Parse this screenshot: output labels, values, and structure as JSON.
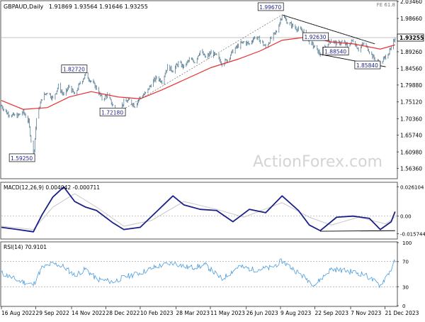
{
  "header": {
    "symbol": "GBPAUD,Daily",
    "ohlc": "1.91869 1.93564 1.91646 1.93255",
    "fib": "FE 61.8"
  },
  "watermark": "ActionForex.com",
  "colors": {
    "price": "#5b7f95",
    "ma": "#e83030",
    "macd": "#1a1f8a",
    "signal": "#c8c8c8",
    "rsi": "#4a9de0",
    "trend": "#000000"
  },
  "chart_data": [
    {
      "type": "candlestick",
      "panel": "price",
      "ylim": [
        1.5363,
        2.0346
      ],
      "y_ticks": [
        "2.03460",
        "1.98660",
        "1.93255",
        "1.89260",
        "1.84560",
        "1.79880",
        "1.75120",
        "1.70360",
        "1.65740",
        "1.60980",
        "1.56360"
      ],
      "price_points": [
        {
          "date": "2022-08-16",
          "price": 1.74
        },
        {
          "date": "2022-08-23",
          "price": 1.72
        },
        {
          "date": "2022-08-30",
          "price": 1.713
        },
        {
          "date": "2022-09-06",
          "price": 1.712
        },
        {
          "date": "2022-09-13",
          "price": 1.723
        },
        {
          "date": "2022-09-20",
          "price": 1.695
        },
        {
          "date": "2022-09-26",
          "price": 1.5925
        },
        {
          "date": "2022-09-30",
          "price": 1.705
        },
        {
          "date": "2022-10-07",
          "price": 1.762
        },
        {
          "date": "2022-10-14",
          "price": 1.78
        },
        {
          "date": "2022-10-21",
          "price": 1.76
        },
        {
          "date": "2022-10-28",
          "price": 1.795
        },
        {
          "date": "2022-11-04",
          "price": 1.77
        },
        {
          "date": "2022-11-11",
          "price": 1.795
        },
        {
          "date": "2022-11-18",
          "price": 1.77
        },
        {
          "date": "2022-11-25",
          "price": 1.805
        },
        {
          "date": "2022-12-02",
          "price": 1.8272
        },
        {
          "date": "2022-12-09",
          "price": 1.81
        },
        {
          "date": "2022-12-16",
          "price": 1.79
        },
        {
          "date": "2022-12-23",
          "price": 1.76
        },
        {
          "date": "2022-12-30",
          "price": 1.77
        },
        {
          "date": "2023-01-06",
          "price": 1.74
        },
        {
          "date": "2023-01-13",
          "price": 1.7218
        },
        {
          "date": "2023-01-20",
          "price": 1.75
        },
        {
          "date": "2023-01-27",
          "price": 1.755
        },
        {
          "date": "2023-02-03",
          "price": 1.74
        },
        {
          "date": "2023-02-10",
          "price": 1.765
        },
        {
          "date": "2023-02-17",
          "price": 1.775
        },
        {
          "date": "2023-02-24",
          "price": 1.8
        },
        {
          "date": "2023-03-03",
          "price": 1.82
        },
        {
          "date": "2023-03-10",
          "price": 1.81
        },
        {
          "date": "2023-03-17",
          "price": 1.85
        },
        {
          "date": "2023-03-24",
          "price": 1.84
        },
        {
          "date": "2023-03-31",
          "price": 1.86
        },
        {
          "date": "2023-04-07",
          "price": 1.85
        },
        {
          "date": "2023-04-14",
          "price": 1.87
        },
        {
          "date": "2023-04-21",
          "price": 1.865
        },
        {
          "date": "2023-04-28",
          "price": 1.895
        },
        {
          "date": "2023-05-05",
          "price": 1.875
        },
        {
          "date": "2023-05-12",
          "price": 1.89
        },
        {
          "date": "2023-05-19",
          "price": 1.88
        },
        {
          "date": "2023-05-26",
          "price": 1.86
        },
        {
          "date": "2023-06-02",
          "price": 1.87
        },
        {
          "date": "2023-06-09",
          "price": 1.895
        },
        {
          "date": "2023-06-16",
          "price": 1.91
        },
        {
          "date": "2023-06-23",
          "price": 1.92
        },
        {
          "date": "2023-06-30",
          "price": 1.915
        },
        {
          "date": "2023-07-07",
          "price": 1.935
        },
        {
          "date": "2023-07-14",
          "price": 1.925
        },
        {
          "date": "2023-07-21",
          "price": 1.905
        },
        {
          "date": "2023-07-28",
          "price": 1.93
        },
        {
          "date": "2023-08-04",
          "price": 1.95
        },
        {
          "date": "2023-08-11",
          "price": 1.9967
        },
        {
          "date": "2023-08-18",
          "price": 1.975
        },
        {
          "date": "2023-08-25",
          "price": 1.965
        },
        {
          "date": "2023-09-01",
          "price": 1.955
        },
        {
          "date": "2023-09-08",
          "price": 1.95
        },
        {
          "date": "2023-09-15",
          "price": 1.92
        },
        {
          "date": "2023-09-22",
          "price": 1.905
        },
        {
          "date": "2023-09-29",
          "price": 1.8854
        },
        {
          "date": "2023-10-06",
          "price": 1.91
        },
        {
          "date": "2023-10-13",
          "price": 1.9263
        },
        {
          "date": "2023-10-20",
          "price": 1.915
        },
        {
          "date": "2023-10-27",
          "price": 1.92
        },
        {
          "date": "2023-11-03",
          "price": 1.91
        },
        {
          "date": "2023-11-10",
          "price": 1.925
        },
        {
          "date": "2023-11-17",
          "price": 1.9
        },
        {
          "date": "2023-11-24",
          "price": 1.915
        },
        {
          "date": "2023-12-01",
          "price": 1.895
        },
        {
          "date": "2023-12-08",
          "price": 1.87
        },
        {
          "date": "2023-12-15",
          "price": 1.8584
        },
        {
          "date": "2023-12-22",
          "price": 1.88
        },
        {
          "date": "2023-12-29",
          "price": 1.9
        },
        {
          "date": "2024-01-03",
          "price": 1.9326
        }
      ],
      "moving_average": [
        {
          "date": "2022-08-16",
          "value": 1.755
        },
        {
          "date": "2022-09-13",
          "value": 1.73
        },
        {
          "date": "2022-10-14",
          "value": 1.735
        },
        {
          "date": "2022-11-11",
          "value": 1.765
        },
        {
          "date": "2022-12-09",
          "value": 1.78
        },
        {
          "date": "2023-01-13",
          "value": 1.765
        },
        {
          "date": "2023-02-10",
          "value": 1.76
        },
        {
          "date": "2023-03-10",
          "value": 1.785
        },
        {
          "date": "2023-04-14",
          "value": 1.82
        },
        {
          "date": "2023-05-12",
          "value": 1.848
        },
        {
          "date": "2023-06-16",
          "value": 1.872
        },
        {
          "date": "2023-07-14",
          "value": 1.895
        },
        {
          "date": "2023-08-11",
          "value": 1.925
        },
        {
          "date": "2023-09-15",
          "value": 1.935
        },
        {
          "date": "2023-10-13",
          "value": 1.92
        },
        {
          "date": "2023-11-10",
          "value": 1.915
        },
        {
          "date": "2023-12-15",
          "value": 1.9
        },
        {
          "date": "2024-01-03",
          "value": 1.912
        }
      ],
      "price_labels": [
        {
          "text": "1.99670",
          "date": "2023-08-11",
          "price": 1.9967
        },
        {
          "text": "1.82720",
          "date": "2022-12-02",
          "price": 1.8272
        },
        {
          "text": "1.72180",
          "date": "2023-01-13",
          "price": 1.7218
        },
        {
          "text": "1.59250",
          "date": "2022-09-26",
          "price": 1.5925
        },
        {
          "text": "1.92630",
          "date": "2023-10-13",
          "price": 1.9263
        },
        {
          "text": "1.88540",
          "date": "2023-09-29",
          "price": 1.8854
        },
        {
          "text": "1.85840",
          "date": "2023-12-15",
          "price": 1.8584
        }
      ],
      "trend_lines": [
        {
          "from": {
            "date": "2023-08-11",
            "price": 1.9967
          },
          "to": {
            "date": "2023-12-08",
            "price": 1.915
          }
        },
        {
          "from": {
            "date": "2023-09-29",
            "price": 1.8854
          },
          "to": {
            "date": "2023-12-22",
            "price": 1.85
          }
        }
      ],
      "current_price": "1.93255"
    },
    {
      "type": "line",
      "panel": "macd",
      "title": "MACD(12,26,9) 0.004042 -0.000711",
      "ylim": [
        -0.0198,
        0.0295
      ],
      "y_ticks": [
        "0.026104",
        "0.00",
        "-0.015744"
      ],
      "macd": [
        {
          "date": "2022-08-16",
          "value": -0.01
        },
        {
          "date": "2022-09-06",
          "value": -0.012
        },
        {
          "date": "2022-09-26",
          "value": -0.014
        },
        {
          "date": "2022-10-07",
          "value": 0.001
        },
        {
          "date": "2022-10-21",
          "value": 0.017
        },
        {
          "date": "2022-11-04",
          "value": 0.026
        },
        {
          "date": "2022-11-18",
          "value": 0.013
        },
        {
          "date": "2022-12-02",
          "value": 0.008
        },
        {
          "date": "2022-12-16",
          "value": 0.005
        },
        {
          "date": "2023-01-06",
          "value": -0.006
        },
        {
          "date": "2023-01-20",
          "value": -0.012
        },
        {
          "date": "2023-02-10",
          "value": -0.01
        },
        {
          "date": "2023-03-03",
          "value": 0.004
        },
        {
          "date": "2023-03-24",
          "value": 0.018
        },
        {
          "date": "2023-04-07",
          "value": 0.01
        },
        {
          "date": "2023-04-28",
          "value": 0.006
        },
        {
          "date": "2023-05-19",
          "value": 0.005
        },
        {
          "date": "2023-06-09",
          "value": -0.005
        },
        {
          "date": "2023-06-30",
          "value": 0.006
        },
        {
          "date": "2023-07-21",
          "value": 0.003
        },
        {
          "date": "2023-08-11",
          "value": 0.018
        },
        {
          "date": "2023-09-01",
          "value": 0.005
        },
        {
          "date": "2023-09-15",
          "value": -0.008
        },
        {
          "date": "2023-09-29",
          "value": -0.013
        },
        {
          "date": "2023-10-20",
          "value": -0.001
        },
        {
          "date": "2023-11-10",
          "value": 0.0
        },
        {
          "date": "2023-12-01",
          "value": -0.002
        },
        {
          "date": "2023-12-15",
          "value": -0.012
        },
        {
          "date": "2023-12-29",
          "value": -0.005
        },
        {
          "date": "2024-01-03",
          "value": 0.004
        }
      ],
      "signal": [
        {
          "date": "2022-08-16",
          "value": -0.009
        },
        {
          "date": "2022-09-26",
          "value": -0.012
        },
        {
          "date": "2022-10-21",
          "value": 0.008
        },
        {
          "date": "2022-11-18",
          "value": 0.02
        },
        {
          "date": "2022-12-16",
          "value": 0.008
        },
        {
          "date": "2023-01-20",
          "value": -0.009
        },
        {
          "date": "2023-02-24",
          "value": -0.004
        },
        {
          "date": "2023-04-07",
          "value": 0.013
        },
        {
          "date": "2023-05-19",
          "value": 0.006
        },
        {
          "date": "2023-06-23",
          "value": -0.001
        },
        {
          "date": "2023-08-11",
          "value": 0.012
        },
        {
          "date": "2023-09-15",
          "value": -0.001
        },
        {
          "date": "2023-10-13",
          "value": -0.008
        },
        {
          "date": "2023-11-17",
          "value": -0.001
        },
        {
          "date": "2023-12-22",
          "value": -0.007
        },
        {
          "date": "2024-01-03",
          "value": -0.0007
        }
      ],
      "zero_line": 0.0
    },
    {
      "type": "line",
      "panel": "rsi",
      "title": "RSI(14) 70.9101",
      "ylim": [
        0,
        100
      ],
      "y_ticks": [
        "100",
        "70",
        "30",
        "0"
      ],
      "levels": [
        70,
        30
      ],
      "rsi": [
        {
          "date": "2022-08-16",
          "value": 52
        },
        {
          "date": "2022-09-06",
          "value": 40
        },
        {
          "date": "2022-09-26",
          "value": 33
        },
        {
          "date": "2022-10-07",
          "value": 60
        },
        {
          "date": "2022-10-21",
          "value": 67
        },
        {
          "date": "2022-11-04",
          "value": 62
        },
        {
          "date": "2022-11-18",
          "value": 48
        },
        {
          "date": "2022-12-02",
          "value": 58
        },
        {
          "date": "2022-12-16",
          "value": 42
        },
        {
          "date": "2023-01-06",
          "value": 38
        },
        {
          "date": "2023-01-20",
          "value": 45
        },
        {
          "date": "2023-02-10",
          "value": 52
        },
        {
          "date": "2023-03-03",
          "value": 62
        },
        {
          "date": "2023-03-24",
          "value": 68
        },
        {
          "date": "2023-04-14",
          "value": 60
        },
        {
          "date": "2023-05-05",
          "value": 64
        },
        {
          "date": "2023-05-26",
          "value": 42
        },
        {
          "date": "2023-06-16",
          "value": 62
        },
        {
          "date": "2023-07-07",
          "value": 57
        },
        {
          "date": "2023-07-28",
          "value": 60
        },
        {
          "date": "2023-08-11",
          "value": 71
        },
        {
          "date": "2023-09-01",
          "value": 52
        },
        {
          "date": "2023-09-22",
          "value": 33
        },
        {
          "date": "2023-10-13",
          "value": 58
        },
        {
          "date": "2023-11-03",
          "value": 55
        },
        {
          "date": "2023-11-24",
          "value": 50
        },
        {
          "date": "2023-12-15",
          "value": 32
        },
        {
          "date": "2023-12-29",
          "value": 58
        },
        {
          "date": "2024-01-03",
          "value": 71
        }
      ]
    }
  ],
  "x_axis_labels": [
    {
      "text": "16 Aug 2022",
      "date": "2022-08-16"
    },
    {
      "text": "29 Sep 2022",
      "date": "2022-09-29"
    },
    {
      "text": "14 Nov 2022",
      "date": "2022-11-14"
    },
    {
      "text": "28 Dec 2022",
      "date": "2022-12-28"
    },
    {
      "text": "10 Feb 2023",
      "date": "2023-02-10"
    },
    {
      "text": "28 Mar 2023",
      "date": "2023-03-28"
    },
    {
      "text": "11 May 2023",
      "date": "2023-05-11"
    },
    {
      "text": "26 Jun 2023",
      "date": "2023-06-26"
    },
    {
      "text": "9 Aug 2023",
      "date": "2023-08-09"
    },
    {
      "text": "22 Sep 2023",
      "date": "2023-09-22"
    },
    {
      "text": "7 Nov 2023",
      "date": "2023-11-07"
    },
    {
      "text": "21 Dec 2023",
      "date": "2023-12-21"
    }
  ]
}
